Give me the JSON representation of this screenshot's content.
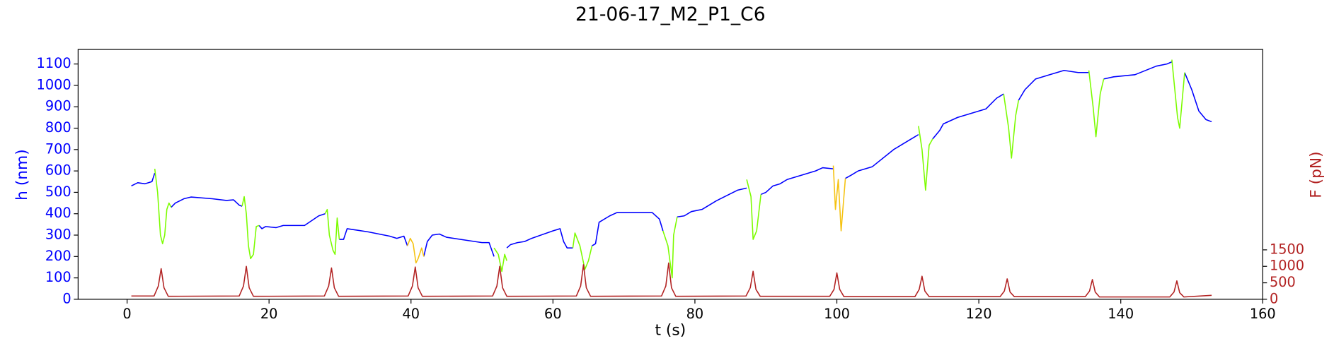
{
  "chart_data": {
    "type": "line",
    "title": "21-06-17_M2_P1_C6",
    "x_label": "t (s)",
    "y_label": "h (nm)",
    "y2_label": "F (pN)",
    "y_label_color": "#0000ff",
    "y2_label_color": "#b22222",
    "xlim": [
      -6.9,
      160
    ],
    "xticks": [
      0,
      20,
      40,
      60,
      80,
      100,
      120,
      140,
      160
    ],
    "ylim": [
      0,
      1168
    ],
    "yticks": [
      0,
      100,
      200,
      300,
      400,
      500,
      600,
      700,
      800,
      900,
      1000,
      1100
    ],
    "y2lim": [
      0,
      7580
    ],
    "y2ticks": [
      0,
      500,
      1000,
      1500
    ],
    "series": [
      {
        "color": "#0000ff",
        "axis": "y",
        "x": [
          0.6,
          1.5,
          2.5,
          3.5,
          3.9,
          null,
          6.2,
          6.8,
          8,
          9,
          12,
          14,
          15,
          15.8,
          16.2,
          null,
          18.6,
          19,
          19.5,
          21,
          22,
          25,
          27,
          27.9,
          null,
          29.9,
          30.5,
          31,
          34,
          37,
          38,
          39,
          39.5,
          null,
          41.8,
          42.3,
          43,
          44,
          45,
          48,
          50,
          51,
          51.7,
          null,
          53.5,
          54,
          55,
          56,
          57,
          60,
          61,
          61.5,
          62,
          62.8,
          null,
          65.5,
          66,
          66.5,
          68,
          69,
          72,
          74,
          75,
          75.5,
          null,
          77.5,
          78.5,
          79.5,
          81,
          83,
          86,
          87.3,
          null,
          89.3,
          90,
          91,
          92,
          93,
          97,
          98,
          99.5,
          null,
          101.2,
          102,
          103,
          105,
          108,
          110,
          111,
          111.5,
          null,
          113.5,
          114.5,
          115,
          117,
          121,
          122.5,
          123.5,
          null,
          125.6,
          126.5,
          128,
          130,
          132,
          134,
          135.5,
          null,
          137.6,
          139,
          142,
          145,
          146.5,
          147.2,
          null,
          149,
          150,
          151,
          152,
          152.8
        ],
        "values": [
          530,
          545,
          540,
          550,
          590,
          null,
          430,
          450,
          470,
          478,
          470,
          462,
          465,
          440,
          435,
          null,
          345,
          330,
          340,
          335,
          345,
          345,
          390,
          400,
          null,
          280,
          280,
          330,
          315,
          295,
          285,
          295,
          250,
          null,
          200,
          270,
          300,
          305,
          290,
          275,
          265,
          265,
          200,
          null,
          240,
          255,
          265,
          270,
          285,
          320,
          330,
          270,
          240,
          240,
          null,
          250,
          260,
          360,
          390,
          405,
          405,
          405,
          375,
          320,
          null,
          385,
          390,
          410,
          420,
          460,
          510,
          520,
          null,
          490,
          500,
          530,
          540,
          560,
          600,
          615,
          610,
          null,
          565,
          580,
          600,
          620,
          700,
          740,
          760,
          770,
          null,
          750,
          790,
          820,
          850,
          890,
          940,
          960,
          null,
          930,
          980,
          1030,
          1050,
          1070,
          1060,
          1060,
          null,
          1030,
          1040,
          1050,
          1090,
          1100,
          1110,
          null,
          1060,
          980,
          880,
          840,
          830
        ]
      },
      {
        "color": "#7cfc00",
        "axis": "y",
        "x": [
          3.9,
          4.3,
          4.7,
          5.0,
          5.3,
          5.6,
          5.9,
          6.2,
          null,
          16.2,
          16.5,
          16.8,
          17.1,
          17.4,
          17.8,
          18.2,
          18.6,
          null,
          27.9,
          28.2,
          28.5,
          29,
          29.3,
          29.6,
          29.9,
          null,
          51.7,
          52.3,
          52.8,
          53.2,
          53.5,
          null,
          62.8,
          63.1,
          63.8,
          64.5,
          65,
          65.5,
          null,
          75.5,
          76.2,
          76.8,
          77,
          77.5,
          null,
          87.3,
          87.9,
          88.2,
          88.7,
          89.3,
          null,
          111.5,
          112,
          112.5,
          113,
          113.5,
          null,
          123.5,
          124.2,
          124.6,
          125.2,
          125.6,
          null,
          135.5,
          136.1,
          136.5,
          137.1,
          137.6,
          null,
          147.2,
          148,
          148.3,
          149
        ],
        "values": [
          610,
          500,
          300,
          260,
          300,
          420,
          450,
          430,
          null,
          435,
          480,
          400,
          250,
          190,
          210,
          340,
          345,
          null,
          400,
          420,
          300,
          230,
          210,
          380,
          280,
          null,
          240,
          210,
          130,
          210,
          180,
          null,
          240,
          310,
          250,
          140,
          180,
          250,
          null,
          320,
          250,
          100,
          300,
          385,
          null,
          560,
          480,
          280,
          320,
          490,
          null,
          810,
          700,
          510,
          720,
          750,
          null,
          960,
          800,
          660,
          860,
          930,
          null,
          1070,
          900,
          760,
          960,
          1030,
          null,
          1120,
          850,
          800,
          1060
        ]
      },
      {
        "color": "#f5c211",
        "axis": "y",
        "x": [
          39.5,
          39.9,
          40.3,
          40.7,
          41,
          41.5,
          41.8,
          null,
          99.5,
          99.8,
          100.2,
          100.6,
          101.2
        ],
        "values": [
          250,
          285,
          260,
          170,
          190,
          240,
          200,
          null,
          625,
          420,
          560,
          320,
          565
        ]
      },
      {
        "color": "#b22222",
        "axis": "y2",
        "x": [
          0.6,
          3.8,
          4.4,
          4.8,
          5.2,
          5.8,
          15.8,
          16.4,
          16.8,
          17.2,
          17.8,
          27.8,
          28.4,
          28.8,
          29.2,
          29.8,
          39.6,
          40.2,
          40.6,
          41,
          41.6,
          51.5,
          52.1,
          52.5,
          52.9,
          53.5,
          63.3,
          63.9,
          64.3,
          64.7,
          65.3,
          75.3,
          75.9,
          76.3,
          76.7,
          77.3,
          87.2,
          87.8,
          88.2,
          88.6,
          89.2,
          99,
          99.6,
          100,
          100.4,
          101,
          111,
          111.6,
          112,
          112.4,
          113,
          123,
          123.6,
          124,
          124.4,
          125,
          135,
          135.6,
          136,
          136.4,
          137,
          146.9,
          147.5,
          147.9,
          148.3,
          148.9,
          152.8
        ],
        "values": [
          100,
          100,
          400,
          930,
          350,
          90,
          100,
          400,
          1000,
          350,
          90,
          100,
          400,
          950,
          350,
          90,
          100,
          400,
          980,
          350,
          90,
          100,
          400,
          1000,
          350,
          90,
          100,
          400,
          1050,
          350,
          90,
          100,
          400,
          1100,
          350,
          90,
          100,
          350,
          850,
          300,
          90,
          90,
          300,
          800,
          300,
          80,
          80,
          300,
          700,
          250,
          80,
          80,
          250,
          620,
          220,
          80,
          80,
          250,
          600,
          220,
          70,
          70,
          220,
          560,
          200,
          70,
          120
        ]
      }
    ]
  }
}
